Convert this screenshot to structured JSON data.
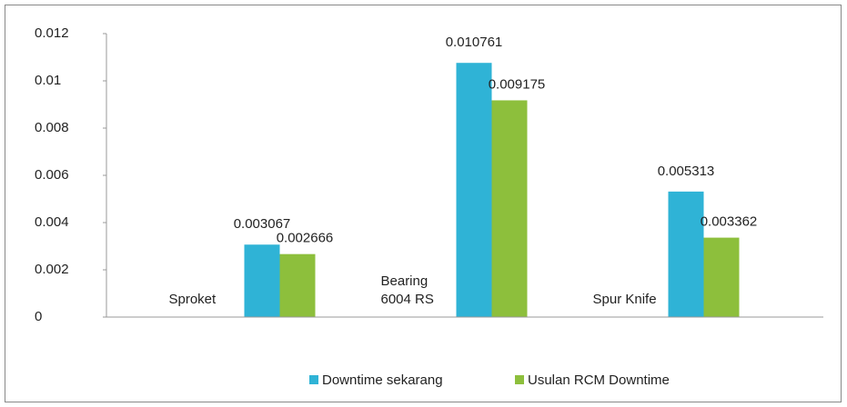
{
  "chart_data": {
    "type": "bar",
    "categories": [
      "Sproket",
      "Bearing 6004 RS",
      "Spur Knife"
    ],
    "series": [
      {
        "name": "Downtime sekarang",
        "color": "#2fb3d6",
        "values": [
          0.003067,
          0.010761,
          0.005313
        ]
      },
      {
        "name": "Usulan RCM Downtime",
        "color": "#8dbf3c",
        "values": [
          0.002666,
          0.009175,
          0.003362
        ]
      }
    ],
    "ylim": [
      0,
      0.012
    ],
    "yticks": [
      0,
      0.002,
      0.004,
      0.006,
      0.008,
      0.01,
      0.012
    ],
    "grid": false,
    "legend": "bottom"
  }
}
